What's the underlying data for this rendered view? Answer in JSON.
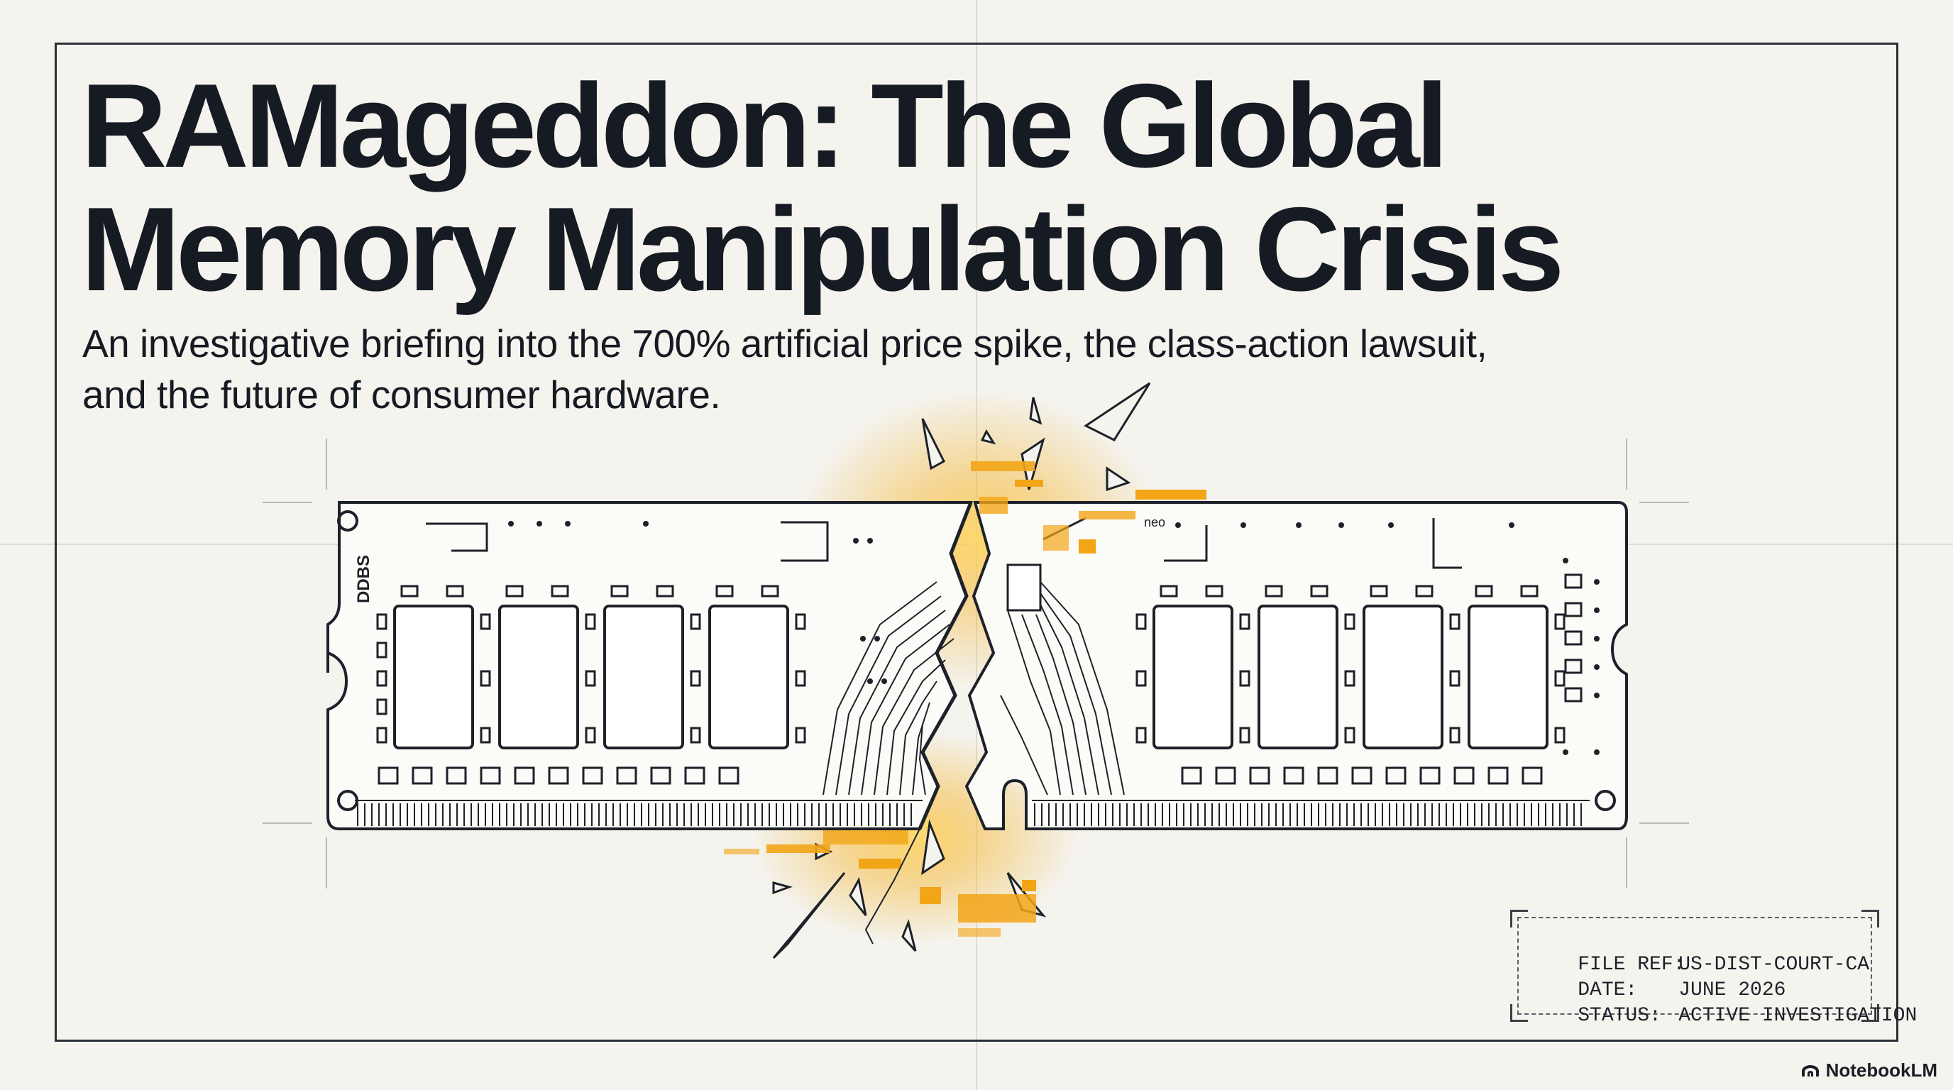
{
  "title": {
    "line1": "RAMageddon: The Global",
    "line2": "Memory Manipulation Crisis"
  },
  "subtitle": {
    "line1": "An investigative briefing into the 700% artificial price spike, the class-action lawsuit,",
    "line2": "and the future of consumer hardware."
  },
  "module": {
    "label": "DDBS",
    "tiny_label": "neo",
    "icon": "broken-ram-module-illustration"
  },
  "file_ref": {
    "rows": [
      {
        "key": "FILE REF:",
        "value": "US-DIST-COURT-CA"
      },
      {
        "key": "DATE:",
        "value": "JUNE 2026"
      },
      {
        "key": "STATUS:",
        "value": "ACTIVE INVESTIGATION"
      }
    ]
  },
  "brand": {
    "name": "NotebookLM",
    "icon": "notebooklm-logo-icon"
  },
  "colors": {
    "ink": "#161a22",
    "background": "#f4f3ee",
    "accent": "#f2a516",
    "accent_light": "#ffd45a"
  }
}
